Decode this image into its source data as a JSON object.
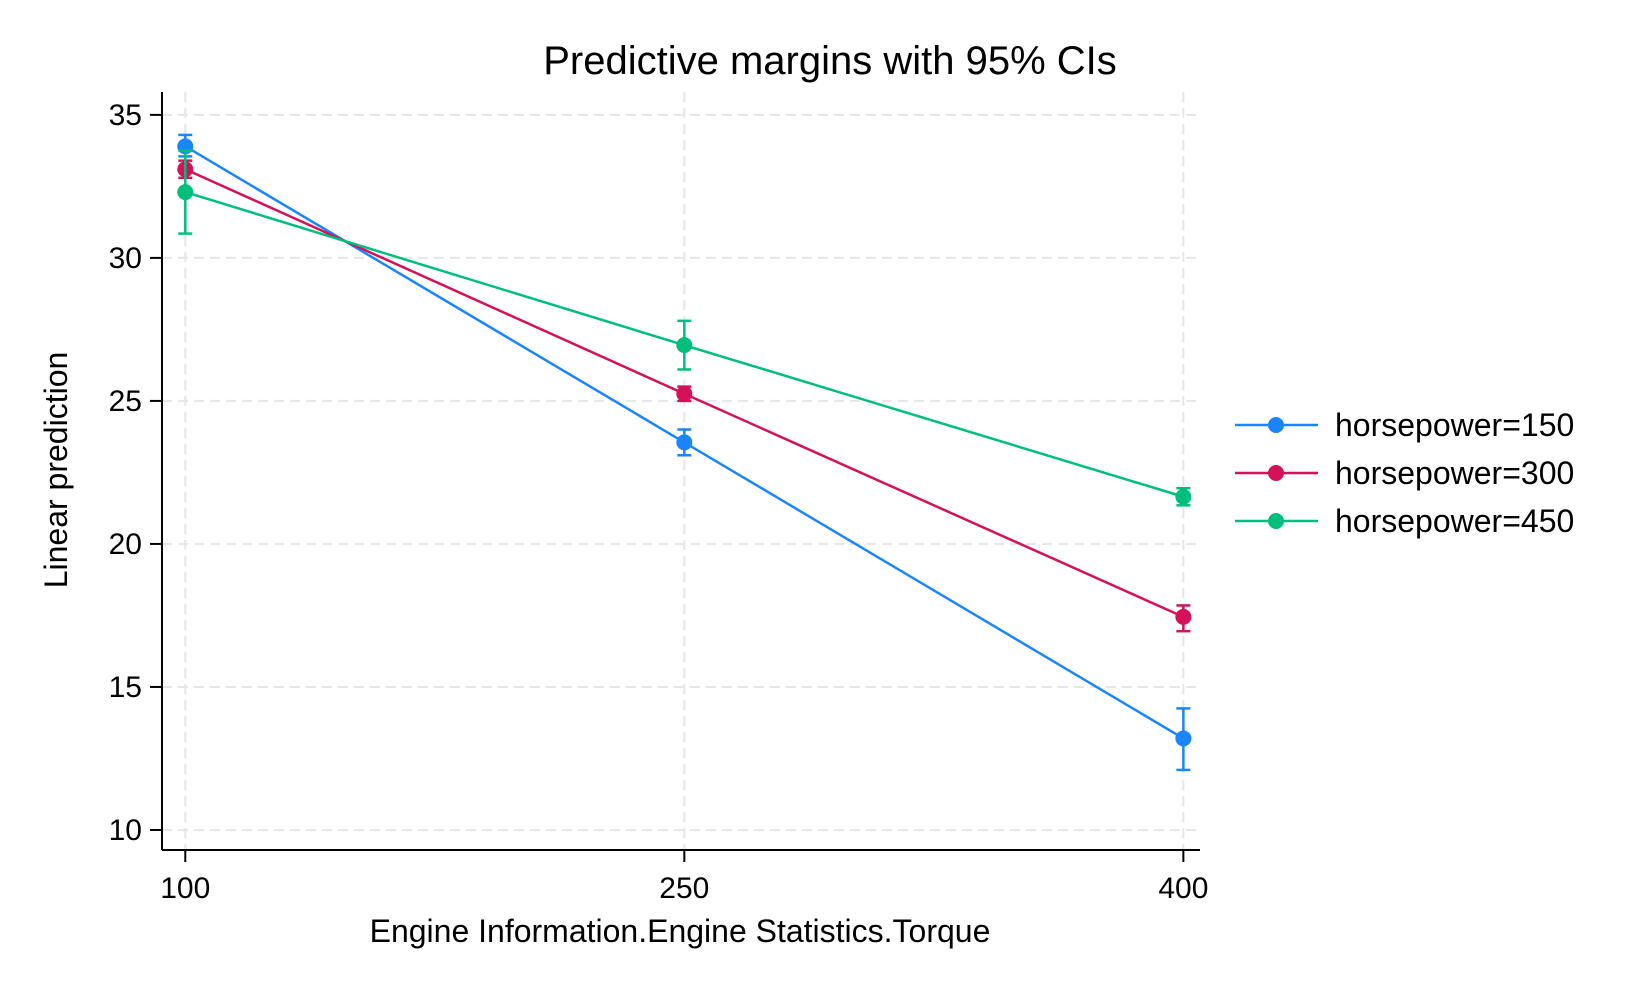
{
  "chart_data": {
    "type": "line",
    "title": "Predictive margins with 95% CIs",
    "xlabel": "Engine Information.Engine Statistics.Torque",
    "ylabel": "Linear prediction",
    "x": [
      100,
      250,
      400
    ],
    "x_tick_labels": [
      "100",
      "250",
      "400"
    ],
    "xlim": [
      93,
      405
    ],
    "y_ticks": [
      10,
      15,
      20,
      25,
      30,
      35
    ],
    "y_tick_labels": [
      "10",
      "15",
      "20",
      "25",
      "30",
      "35"
    ],
    "ylim": [
      9.3,
      35.8
    ],
    "grid": true,
    "error_bars": "95% CI",
    "legend_position": "right",
    "series": [
      {
        "name": "horsepower=150",
        "color": "#1a85ff",
        "values": [
          33.9,
          23.55,
          13.2
        ],
        "ci_low": [
          33.55,
          23.1,
          12.1
        ],
        "ci_high": [
          34.3,
          24.0,
          14.25
        ]
      },
      {
        "name": "horsepower=300",
        "color": "#d41159",
        "values": [
          33.1,
          25.25,
          17.45
        ],
        "ci_low": [
          32.8,
          25.0,
          16.95
        ],
        "ci_high": [
          33.4,
          25.5,
          17.85
        ]
      },
      {
        "name": "horsepower=450",
        "color": "#00bf7d",
        "values": [
          32.3,
          26.95,
          21.65
        ],
        "ci_low": [
          30.85,
          26.1,
          21.35
        ],
        "ci_high": [
          33.75,
          27.8,
          21.95
        ]
      }
    ]
  }
}
